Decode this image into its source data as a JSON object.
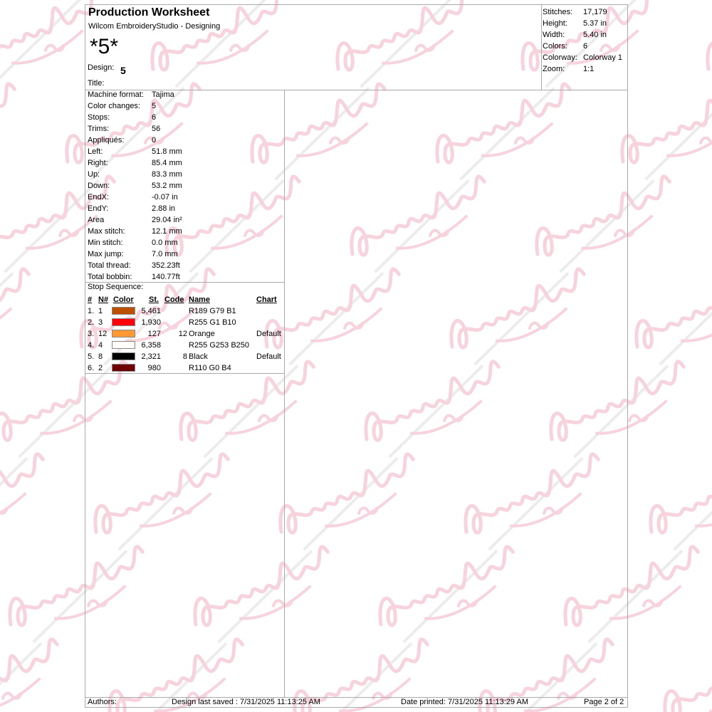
{
  "watermark": {
    "line1": "Embroidery",
    "line2": "ever"
  },
  "header": {
    "title": "Production Worksheet",
    "subtitle": "Wilcom EmbroideryStudio - Designing",
    "design_big": "*5*",
    "design_label": "Design:",
    "design_value": "5",
    "title_label": "Title:"
  },
  "summary": [
    {
      "k": "Stitches:",
      "v": "17,179"
    },
    {
      "k": "Height:",
      "v": "5.37 in"
    },
    {
      "k": "Width:",
      "v": "5.40 in"
    },
    {
      "k": "Colors:",
      "v": "6"
    },
    {
      "k": "Colorway:",
      "v": "Colorway 1"
    },
    {
      "k": "Zoom:",
      "v": "1:1"
    }
  ],
  "stats": [
    {
      "k": "Machine format:",
      "v": "Tajima"
    },
    {
      "k": "Color changes:",
      "v": "5"
    },
    {
      "k": "Stops:",
      "v": "6"
    },
    {
      "k": "Trims:",
      "v": "56"
    },
    {
      "k": "Appliqués:",
      "v": "0"
    },
    {
      "k": "Left:",
      "v": "51.8 mm"
    },
    {
      "k": "Right:",
      "v": "85.4 mm"
    },
    {
      "k": "Up:",
      "v": "83.3 mm"
    },
    {
      "k": "Down:",
      "v": "53.2 mm"
    },
    {
      "k": "EndX:",
      "v": "-0.07 in"
    },
    {
      "k": "EndY:",
      "v": "2.88 in"
    },
    {
      "k": "Area",
      "v": " 29.04 in²"
    },
    {
      "k": "Max stitch:",
      "v": "12.1 mm"
    },
    {
      "k": "Min stitch:",
      "v": "0.0 mm"
    },
    {
      "k": "Max jump:",
      "v": "7.0 mm"
    },
    {
      "k": "Total thread:",
      "v": "352.23ft"
    },
    {
      "k": "Total bobbin:",
      "v": "140.77ft"
    }
  ],
  "stop_sequence": {
    "label": "Stop Sequence:",
    "headers": {
      "num": "#",
      "n": "N#",
      "color": "Color",
      "st": "St.",
      "code": "Code",
      "name": "Name",
      "chart": "Chart"
    },
    "rows": [
      {
        "num": "1.",
        "n": "1",
        "color": "#bd4f01",
        "st": "5,461",
        "code": "",
        "name": "R189 G79 B1",
        "chart": ""
      },
      {
        "num": "2.",
        "n": "3",
        "color": "#ff010a",
        "st": "1,930",
        "code": "",
        "name": "R255 G1 B10",
        "chart": ""
      },
      {
        "num": "3.",
        "n": "12",
        "color": "#ff9933",
        "st": "127",
        "code": "12",
        "name": "Orange",
        "chart": "Default"
      },
      {
        "num": "4.",
        "n": "4",
        "color": "#fffdfa",
        "st": "6,358",
        "code": "",
        "name": "R255 G253 B250",
        "chart": ""
      },
      {
        "num": "5.",
        "n": "8",
        "color": "#000000",
        "st": "2,321",
        "code": "8",
        "name": "Black",
        "chart": "Default"
      },
      {
        "num": "6.",
        "n": "2",
        "color": "#6e0004",
        "st": "980",
        "code": "",
        "name": "R110 G0 B4",
        "chart": ""
      }
    ]
  },
  "footer": {
    "authors": "Authors:",
    "saved": "Design last saved : 7/31/2025 11:13:25 AM",
    "printed": "Date printed: 7/31/2025 11:13:29 AM",
    "page": "Page 2 of 2"
  }
}
